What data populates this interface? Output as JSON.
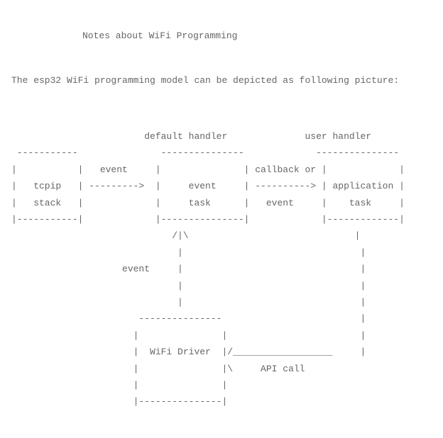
{
  "title": "Notes about WiFi Programming",
  "intro": "The esp32 WiFi programming model can be depicted as following picture:",
  "type": "ascii-diagram",
  "font_family": "monospace",
  "font_size_pt": 10,
  "text_color": "#666666",
  "background_color": "#ffffff",
  "line_height": 1.8,
  "diagram_lines": [
    "                        default handler              user handler",
    " -----------               ---------------             ---------------",
    "|           |   event     |               | callback or |             |",
    "|   tcpip   | --------->  |     event     | ----------> | application |",
    "|   stack   |             |     task      |   event     |    task     |",
    "|-----------|             |---------------|             |-------------|",
    "                             /|\\                              |",
    "                              |                                |",
    "                    event     |                                |",
    "                              |                                |",
    "                              |                                |",
    "                       ---------------                         |",
    "                      |               |                        |",
    "                      |  WiFi Driver  |/__________________     |",
    "                      |               |\\     API call",
    "                      |               |",
    "                      |---------------|"
  ],
  "nodes": [
    {
      "id": "tcpip-stack",
      "label": "tcpip stack"
    },
    {
      "id": "event-task",
      "label": "event task",
      "subheader": "default handler"
    },
    {
      "id": "application-task",
      "label": "application task",
      "subheader": "user handler"
    },
    {
      "id": "wifi-driver",
      "label": "WiFi Driver"
    }
  ],
  "edges": [
    {
      "from": "tcpip-stack",
      "to": "event-task",
      "label": "event"
    },
    {
      "from": "event-task",
      "to": "application-task",
      "label": "callback or event"
    },
    {
      "from": "wifi-driver",
      "to": "event-task",
      "label": "event"
    },
    {
      "from": "application-task",
      "to": "wifi-driver",
      "label": "API call"
    }
  ]
}
